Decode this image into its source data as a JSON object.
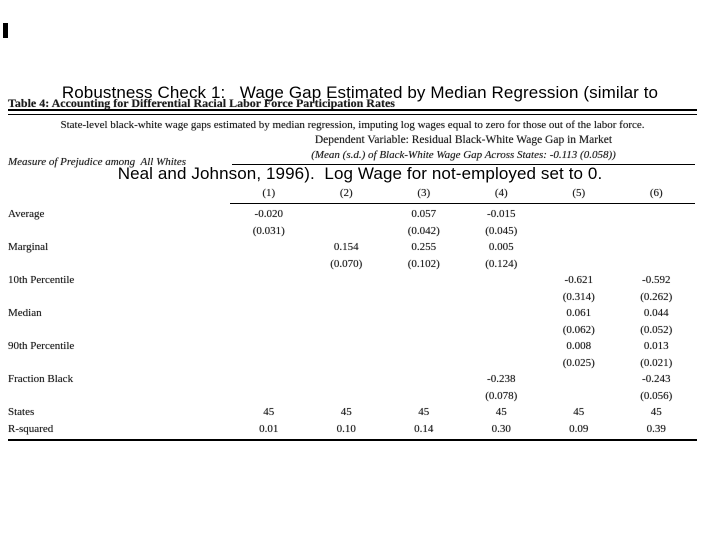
{
  "slide": {
    "title_line1": "Robustness Check 1:   Wage Gap Estimated by Median Regression (similar to",
    "title_line2": "Neal and Johnson, 1996).  Log Wage for not-employed set to 0."
  },
  "table": {
    "title": "Table 4: Accounting for Differential Racial Labor Force Participation Rates",
    "subtitle": "State-level black-white wage gaps estimated by median regression, imputing log wages equal to zero for those out of the labor force.",
    "dependent_variable": "Dependent Variable: Residual Black-White Wage Gap in Market",
    "mean_note": "(Mean (s.d.) of Black-White Wage Gap Across States: -0.113 (0.058))",
    "row_header_label": "Measure of Prejudice among  All Whites",
    "columns": [
      "(1)",
      "(2)",
      "(3)",
      "(4)",
      "(5)",
      "(6)"
    ],
    "rows": [
      {
        "label": "Average",
        "coef": [
          "-0.020",
          "",
          "0.057",
          "-0.015",
          "",
          ""
        ],
        "se": [
          "(0.031)",
          "",
          "(0.042)",
          "(0.045)",
          "",
          ""
        ]
      },
      {
        "label": "Marginal",
        "coef": [
          "",
          "0.154",
          "0.255",
          "0.005",
          "",
          ""
        ],
        "se": [
          "",
          "(0.070)",
          "(0.102)",
          "(0.124)",
          "",
          ""
        ]
      },
      {
        "label": "10th Percentile",
        "coef": [
          "",
          "",
          "",
          "",
          "-0.621",
          "-0.592"
        ],
        "se": [
          "",
          "",
          "",
          "",
          "(0.314)",
          "(0.262)"
        ]
      },
      {
        "label": "Median",
        "coef": [
          "",
          "",
          "",
          "",
          "0.061",
          "0.044"
        ],
        "se": [
          "",
          "",
          "",
          "",
          "(0.062)",
          "(0.052)"
        ]
      },
      {
        "label": "90th Percentile",
        "coef": [
          "",
          "",
          "",
          "",
          "0.008",
          "0.013"
        ],
        "se": [
          "",
          "",
          "",
          "",
          "(0.025)",
          "(0.021)"
        ]
      },
      {
        "label": "Fraction Black",
        "coef": [
          "",
          "",
          "",
          "-0.238",
          "",
          "-0.243"
        ],
        "se": [
          "",
          "",
          "",
          "(0.078)",
          "",
          "(0.056)"
        ]
      }
    ],
    "stat_rows": [
      {
        "label": "States",
        "values": [
          "45",
          "45",
          "45",
          "45",
          "45",
          "45"
        ]
      },
      {
        "label": "R-squared",
        "values": [
          "0.01",
          "0.10",
          "0.14",
          "0.30",
          "0.09",
          "0.39"
        ]
      }
    ]
  }
}
